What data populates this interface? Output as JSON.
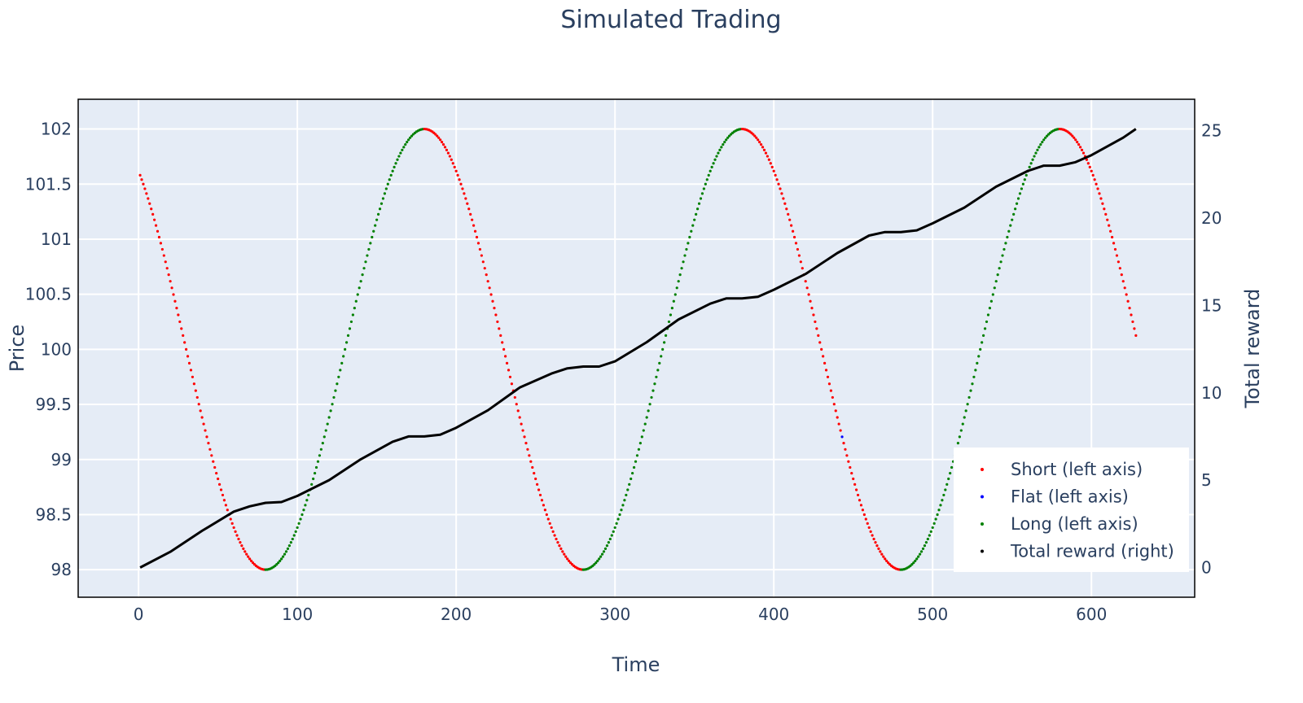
{
  "chart_data": {
    "type": "scatter",
    "title": "Simulated Trading",
    "xlabel": "Time",
    "ylabel_left": "Price",
    "ylabel_right": "Total reward",
    "xlim": [
      -38,
      665
    ],
    "ylim_left": [
      97.75,
      102.27
    ],
    "ylim_right": [
      -1.7,
      26.8
    ],
    "x_ticks": [
      "0",
      "100",
      "200",
      "300",
      "400",
      "500",
      "600"
    ],
    "y_ticks_left": [
      "98",
      "98.5",
      "99",
      "99.5",
      "100",
      "100.5",
      "101",
      "101.5",
      "102"
    ],
    "y_ticks_right": [
      "0",
      "5",
      "10",
      "15",
      "20",
      "25"
    ],
    "legend_position": "bottom-right",
    "colors": {
      "short": "#ff0000",
      "flat": "#0000ff",
      "long": "#008000",
      "reward": "#000000",
      "plot_bg": "#e5ecf6",
      "grid": "#ffffff",
      "text": "#2a3f5f"
    },
    "price_model": {
      "description_formula": "price = 100 + 2*cos((t - 180)*2*pi/200)",
      "t_start": 1,
      "t_end": 628,
      "mean": 100,
      "amplitude": 2,
      "period": 200,
      "peak_time": 180
    },
    "series": [
      {
        "name": "Short (left axis)",
        "axis": "left",
        "color": "#ff0000",
        "rule": "price falling"
      },
      {
        "name": "Flat (left axis)",
        "axis": "left",
        "color": "#0000ff",
        "points": [
          [
            443,
            99.17
          ]
        ]
      },
      {
        "name": "Long (left axis)",
        "axis": "left",
        "color": "#008000",
        "rule": "price rising"
      },
      {
        "name": "Total reward (right)",
        "axis": "right",
        "color": "#000000",
        "points": [
          [
            1,
            0.0
          ],
          [
            20,
            0.9
          ],
          [
            40,
            2.1
          ],
          [
            60,
            3.2
          ],
          [
            70,
            3.5
          ],
          [
            80,
            3.7
          ],
          [
            90,
            3.75
          ],
          [
            100,
            4.1
          ],
          [
            120,
            5.0
          ],
          [
            140,
            6.2
          ],
          [
            160,
            7.2
          ],
          [
            170,
            7.5
          ],
          [
            180,
            7.5
          ],
          [
            190,
            7.6
          ],
          [
            200,
            8.0
          ],
          [
            220,
            9.0
          ],
          [
            240,
            10.3
          ],
          [
            260,
            11.1
          ],
          [
            270,
            11.4
          ],
          [
            280,
            11.5
          ],
          [
            290,
            11.5
          ],
          [
            300,
            11.8
          ],
          [
            320,
            12.9
          ],
          [
            340,
            14.2
          ],
          [
            360,
            15.1
          ],
          [
            370,
            15.4
          ],
          [
            380,
            15.4
          ],
          [
            390,
            15.5
          ],
          [
            400,
            15.9
          ],
          [
            420,
            16.8
          ],
          [
            440,
            18.0
          ],
          [
            460,
            19.0
          ],
          [
            470,
            19.2
          ],
          [
            480,
            19.2
          ],
          [
            490,
            19.3
          ],
          [
            500,
            19.7
          ],
          [
            520,
            20.6
          ],
          [
            540,
            21.8
          ],
          [
            560,
            22.7
          ],
          [
            570,
            23.0
          ],
          [
            580,
            23.0
          ],
          [
            590,
            23.2
          ],
          [
            600,
            23.6
          ],
          [
            620,
            24.6
          ],
          [
            628,
            25.1
          ]
        ]
      }
    ]
  }
}
